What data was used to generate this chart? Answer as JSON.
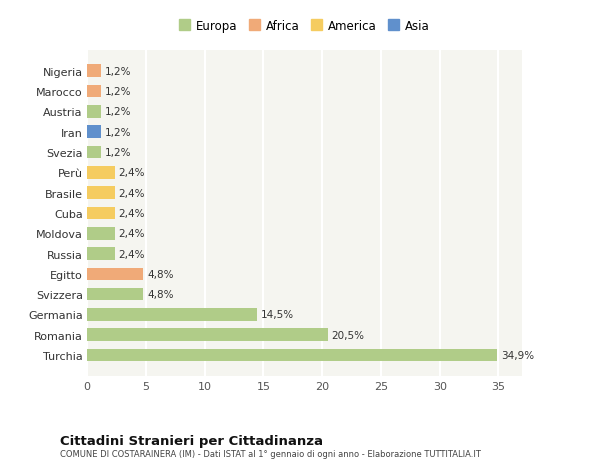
{
  "countries": [
    "Nigeria",
    "Marocco",
    "Austria",
    "Iran",
    "Svezia",
    "Perù",
    "Brasile",
    "Cuba",
    "Moldova",
    "Russia",
    "Egitto",
    "Svizzera",
    "Germania",
    "Romania",
    "Turchia"
  ],
  "values": [
    1.2,
    1.2,
    1.2,
    1.2,
    1.2,
    2.4,
    2.4,
    2.4,
    2.4,
    2.4,
    4.8,
    4.8,
    14.5,
    20.5,
    34.9
  ],
  "labels": [
    "1,2%",
    "1,2%",
    "1,2%",
    "1,2%",
    "1,2%",
    "2,4%",
    "2,4%",
    "2,4%",
    "2,4%",
    "2,4%",
    "4,8%",
    "4,8%",
    "14,5%",
    "20,5%",
    "34,9%"
  ],
  "colors": [
    "#f0aa78",
    "#f0aa78",
    "#b0cc88",
    "#6090cc",
    "#b0cc88",
    "#f5cc60",
    "#f5cc60",
    "#f5cc60",
    "#b0cc88",
    "#b0cc88",
    "#f0aa78",
    "#b0cc88",
    "#b0cc88",
    "#b0cc88",
    "#b0cc88"
  ],
  "legend_labels": [
    "Europa",
    "Africa",
    "America",
    "Asia"
  ],
  "legend_colors": [
    "#b0cc88",
    "#f0aa78",
    "#f5cc60",
    "#6090cc"
  ],
  "title": "Cittadini Stranieri per Cittadinanza",
  "subtitle": "COMUNE DI COSTARAINERA (IM) - Dati ISTAT al 1° gennaio di ogni anno - Elaborazione TUTTITALIA.IT",
  "xlim": [
    0,
    37
  ],
  "xticks": [
    0,
    5,
    10,
    15,
    20,
    25,
    30,
    35
  ],
  "bg_color": "#ffffff",
  "plot_bg_color": "#f5f5f0",
  "grid_color": "#ffffff"
}
